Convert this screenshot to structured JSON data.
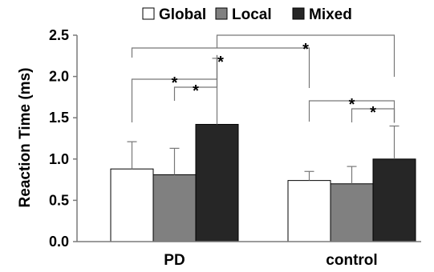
{
  "chart_data": {
    "type": "bar",
    "ylabel": "Reaction Time (ms)",
    "ylim": [
      0,
      2.5
    ],
    "yticks": [
      "0.0",
      "0.5",
      "1.0",
      "1.5",
      "2.0",
      "2.5"
    ],
    "categories": [
      "PD",
      "control"
    ],
    "legend_position": "top",
    "series": [
      {
        "name": "Global",
        "color": "#ffffff",
        "values": [
          0.88,
          0.74
        ],
        "errors": [
          0.33,
          0.11
        ]
      },
      {
        "name": "Local",
        "color": "#808080",
        "values": [
          0.81,
          0.7
        ],
        "errors": [
          0.32,
          0.21
        ]
      },
      {
        "name": "Mixed",
        "color": "#262626",
        "values": [
          1.42,
          1.0
        ],
        "errors": [
          0.8,
          0.4
        ]
      }
    ],
    "significance": [
      {
        "group": "PD",
        "from": "Local",
        "to": "Mixed",
        "label": "*"
      },
      {
        "group": "PD",
        "from": "Global",
        "to": "Mixed",
        "label": "*"
      },
      {
        "group": "control",
        "from": "Local",
        "to": "Mixed",
        "label": "*"
      },
      {
        "group": "control",
        "from": "Global",
        "to": "Mixed",
        "label": "*"
      },
      {
        "between": [
          "PD",
          "control"
        ],
        "series": "Global",
        "label": "*"
      },
      {
        "between": [
          "PD",
          "control"
        ],
        "series": "Mixed",
        "label": "*"
      }
    ]
  }
}
